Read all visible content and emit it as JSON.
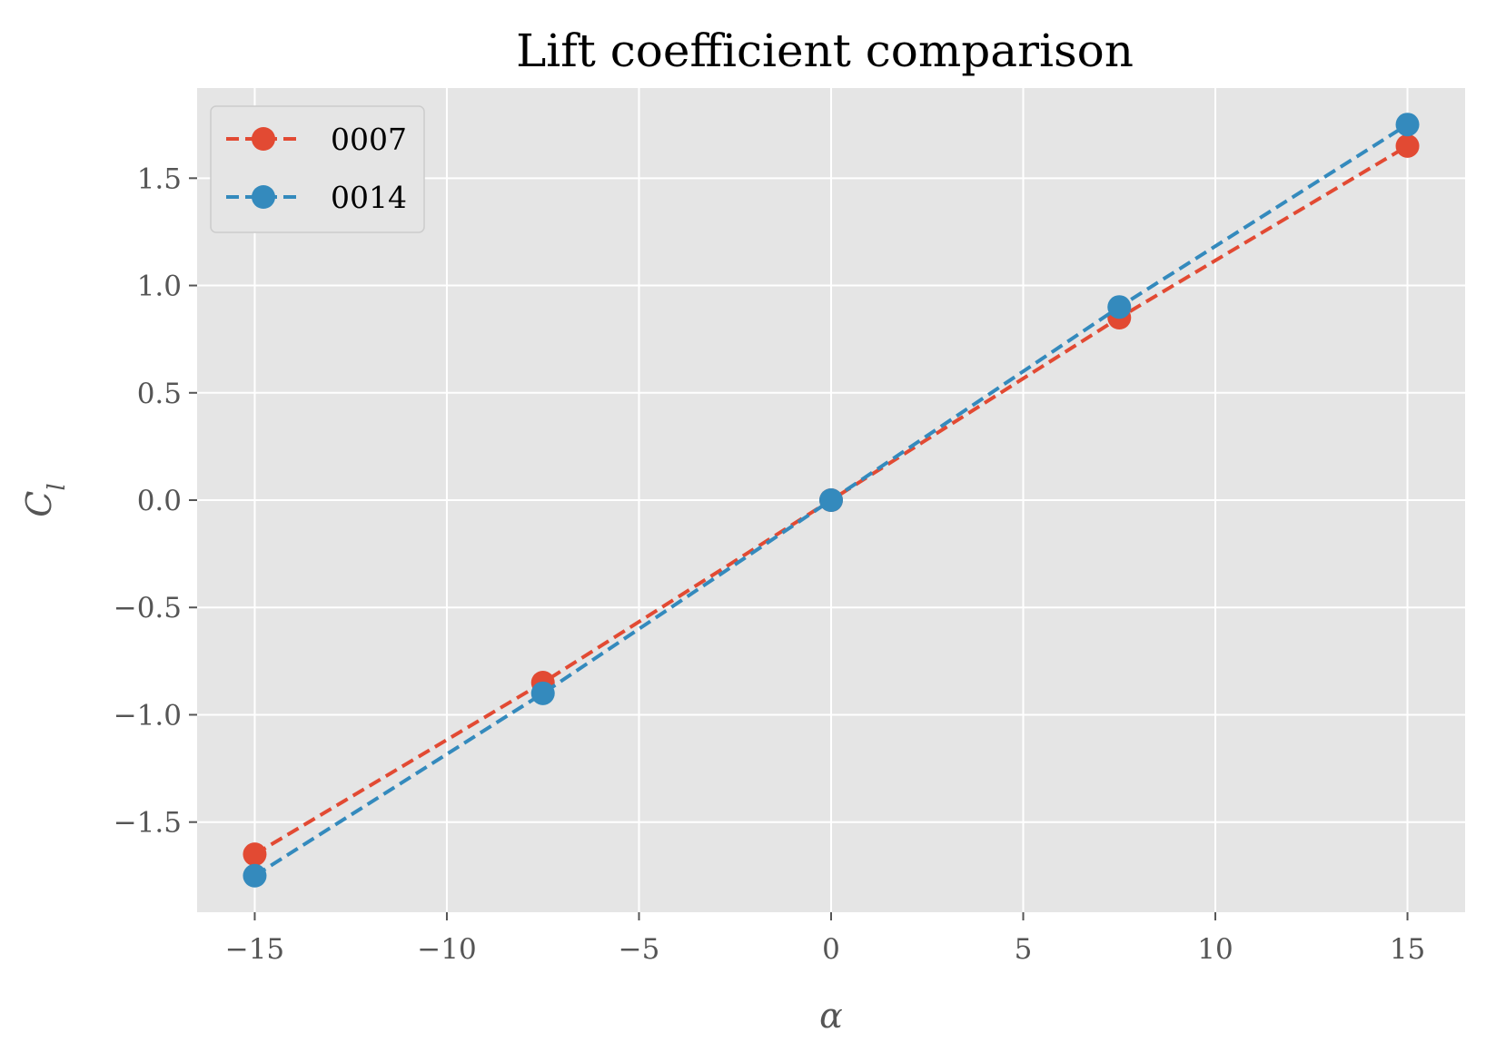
{
  "chart_data": {
    "type": "line",
    "title": "Lift coefficient comparison",
    "xlabel": "α",
    "ylabel": "C",
    "ylabel_sub": "l",
    "xlim": [
      -16.5,
      16.5
    ],
    "ylim": [
      -1.92,
      1.92
    ],
    "xticks": [
      -15,
      -10,
      -5,
      0,
      5,
      10,
      15
    ],
    "xtick_labels": [
      "−15",
      "−10",
      "−5",
      "0",
      "5",
      "10",
      "15"
    ],
    "yticks": [
      -1.5,
      -1.0,
      -0.5,
      0.0,
      0.5,
      1.0,
      1.5
    ],
    "ytick_labels": [
      "−1.5",
      "−1.0",
      "−0.5",
      "0.0",
      "0.5",
      "1.0",
      "1.5"
    ],
    "grid": true,
    "legend_position": "top-left",
    "x": [
      -15,
      -7.5,
      0,
      7.5,
      15
    ],
    "series": [
      {
        "name": "0007",
        "color": "#E24A33",
        "values": [
          -1.65,
          -0.85,
          0.0,
          0.85,
          1.65
        ]
      },
      {
        "name": "0014",
        "color": "#348ABD",
        "values": [
          -1.75,
          -0.9,
          0.0,
          0.9,
          1.75
        ]
      }
    ]
  }
}
